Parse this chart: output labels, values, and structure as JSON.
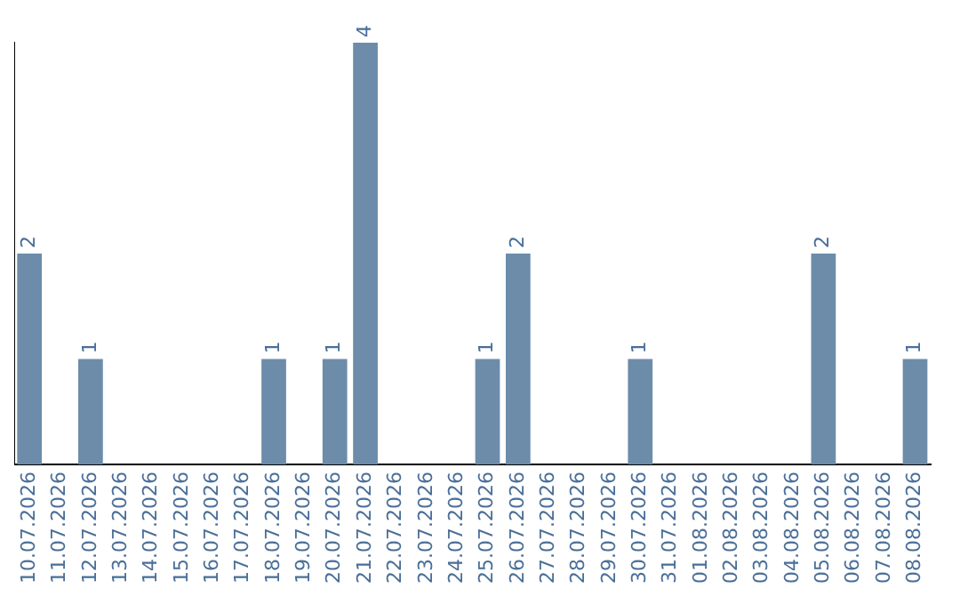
{
  "chart_data": {
    "type": "bar",
    "categories": [
      "10.07.2026",
      "11.07.2026",
      "12.07.2026",
      "13.07.2026",
      "14.07.2026",
      "15.07.2026",
      "16.07.2026",
      "17.07.2026",
      "18.07.2026",
      "19.07.2026",
      "20.07.2026",
      "21.07.2026",
      "22.07.2026",
      "23.07.2026",
      "24.07.2026",
      "25.07.2026",
      "26.07.2026",
      "27.07.2026",
      "28.07.2026",
      "29.07.2026",
      "30.07.2026",
      "31.07.2026",
      "01.08.2026",
      "02.08.2026",
      "03.08.2026",
      "04.08.2026",
      "05.08.2026",
      "06.08.2026",
      "07.08.2026",
      "08.08.2026"
    ],
    "values": [
      2,
      0,
      1,
      0,
      0,
      0,
      0,
      0,
      1,
      0,
      1,
      4,
      0,
      0,
      0,
      1,
      2,
      0,
      0,
      0,
      1,
      0,
      0,
      0,
      0,
      0,
      2,
      0,
      0,
      1
    ],
    "value_labels": [
      "2",
      null,
      "1",
      null,
      null,
      null,
      null,
      null,
      "1",
      null,
      "1",
      "4",
      null,
      null,
      null,
      "1",
      "2",
      null,
      null,
      null,
      "1",
      null,
      null,
      null,
      null,
      null,
      "2",
      null,
      null,
      "1"
    ],
    "color": "#6c8caa",
    "grid": false,
    "legend": false
  }
}
